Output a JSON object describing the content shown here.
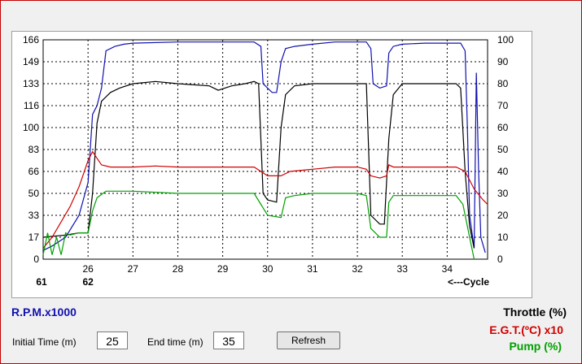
{
  "colors": {
    "rpm": "#1010b0",
    "throttle": "#000000",
    "egt": "#d00000",
    "pump": "#00a000",
    "frame": "#c40000"
  },
  "legend": {
    "rpm": "R.P.M.x1000",
    "throttle": "Throttle (%)",
    "egt": "E.G.T.(ºC) x10",
    "pump": "Pump (%)"
  },
  "controls": {
    "initial_label": "Initial Time (m)",
    "initial_value": "25",
    "end_label": "End time (m)",
    "end_value": "35",
    "refresh_label": "Refresh"
  },
  "chart_data": {
    "type": "line",
    "y_left_ticks": [
      "166",
      "149",
      "133",
      "116",
      "100",
      "83",
      "66",
      "50",
      "33",
      "17",
      "0"
    ],
    "y_right_ticks": [
      "100",
      "90",
      "80",
      "70",
      "60",
      "50",
      "40",
      "30",
      "20",
      "10",
      "0"
    ],
    "x_ticks": [
      "26",
      "27",
      "28",
      "29",
      "30",
      "31",
      "32",
      "33",
      "34"
    ],
    "cycle_labels": [
      "61",
      "62"
    ],
    "cycle_caption": "<---Cycle",
    "xlim": [
      25,
      34.9
    ],
    "ylim_right": [
      0,
      100
    ],
    "grid": true,
    "series": [
      {
        "name": "R.P.M.x1000",
        "color": "rpm",
        "points": [
          [
            25,
            4
          ],
          [
            25.2,
            6
          ],
          [
            25.5,
            10
          ],
          [
            25.8,
            20
          ],
          [
            26,
            35
          ],
          [
            26.1,
            66
          ],
          [
            26.2,
            70
          ],
          [
            26.3,
            78
          ],
          [
            26.4,
            95
          ],
          [
            26.6,
            97
          ],
          [
            26.8,
            98
          ],
          [
            27,
            98.5
          ],
          [
            28,
            99
          ],
          [
            29,
            99
          ],
          [
            29.7,
            99
          ],
          [
            29.85,
            97
          ],
          [
            29.9,
            80
          ],
          [
            30.1,
            76
          ],
          [
            30.2,
            76
          ],
          [
            30.3,
            90
          ],
          [
            30.4,
            96
          ],
          [
            30.6,
            97
          ],
          [
            31,
            98
          ],
          [
            31.5,
            99
          ],
          [
            32.2,
            99
          ],
          [
            32.3,
            96
          ],
          [
            32.35,
            80
          ],
          [
            32.5,
            78
          ],
          [
            32.65,
            79
          ],
          [
            32.7,
            94
          ],
          [
            32.8,
            97
          ],
          [
            33,
            98
          ],
          [
            33.5,
            98.5
          ],
          [
            34.3,
            98.5
          ],
          [
            34.4,
            95
          ],
          [
            34.45,
            60
          ],
          [
            34.5,
            20
          ],
          [
            34.6,
            5
          ],
          [
            34.65,
            85
          ],
          [
            34.7,
            40
          ],
          [
            34.75,
            10
          ],
          [
            34.85,
            3
          ]
        ]
      },
      {
        "name": "Throttle (%)",
        "color": "throttle",
        "points": [
          [
            25,
            10
          ],
          [
            25.5,
            11
          ],
          [
            25.8,
            12
          ],
          [
            26,
            12
          ],
          [
            26.1,
            30
          ],
          [
            26.2,
            62
          ],
          [
            26.3,
            72
          ],
          [
            26.5,
            76
          ],
          [
            26.7,
            78
          ],
          [
            27,
            80
          ],
          [
            27.5,
            81
          ],
          [
            28,
            80
          ],
          [
            28.7,
            79
          ],
          [
            28.9,
            77
          ],
          [
            29.2,
            79
          ],
          [
            29.5,
            80
          ],
          [
            29.7,
            81
          ],
          [
            29.8,
            80
          ],
          [
            29.9,
            30
          ],
          [
            30,
            27
          ],
          [
            30.2,
            26
          ],
          [
            30.3,
            60
          ],
          [
            30.4,
            75
          ],
          [
            30.6,
            79
          ],
          [
            31,
            80
          ],
          [
            31.5,
            80
          ],
          [
            32,
            80
          ],
          [
            32.2,
            80
          ],
          [
            32.3,
            20
          ],
          [
            32.5,
            16
          ],
          [
            32.6,
            16
          ],
          [
            32.7,
            55
          ],
          [
            32.8,
            75
          ],
          [
            33,
            80
          ],
          [
            33.5,
            80
          ],
          [
            34.2,
            80
          ],
          [
            34.3,
            78
          ],
          [
            34.4,
            40
          ],
          [
            34.5,
            15
          ],
          [
            34.6,
            5
          ]
        ]
      },
      {
        "name": "E.G.T.(ºC) x10",
        "color": "egt",
        "points": [
          [
            25,
            5
          ],
          [
            25.2,
            10
          ],
          [
            25.4,
            17
          ],
          [
            25.6,
            24
          ],
          [
            25.8,
            33
          ],
          [
            26,
            45
          ],
          [
            26.1,
            49
          ],
          [
            26.2,
            46
          ],
          [
            26.3,
            43
          ],
          [
            26.5,
            42
          ],
          [
            27,
            42
          ],
          [
            27.5,
            42.5
          ],
          [
            28,
            42
          ],
          [
            29,
            42
          ],
          [
            29.7,
            42
          ],
          [
            29.85,
            40
          ],
          [
            30,
            38
          ],
          [
            30.3,
            38
          ],
          [
            30.5,
            40
          ],
          [
            31,
            41
          ],
          [
            31.5,
            42
          ],
          [
            32,
            42
          ],
          [
            32.2,
            41
          ],
          [
            32.3,
            38
          ],
          [
            32.5,
            37
          ],
          [
            32.65,
            38
          ],
          [
            32.7,
            43
          ],
          [
            32.8,
            42
          ],
          [
            33,
            42
          ],
          [
            33.5,
            42
          ],
          [
            34.2,
            42
          ],
          [
            34.4,
            40
          ],
          [
            34.6,
            32
          ],
          [
            34.8,
            27
          ],
          [
            34.9,
            25
          ]
        ]
      },
      {
        "name": "Pump (%)",
        "color": "pump",
        "points": [
          [
            25,
            2
          ],
          [
            25.1,
            12
          ],
          [
            25.2,
            2
          ],
          [
            25.3,
            10
          ],
          [
            25.4,
            2
          ],
          [
            25.5,
            12
          ],
          [
            25.6,
            11
          ],
          [
            25.8,
            12
          ],
          [
            26,
            12
          ],
          [
            26.1,
            22
          ],
          [
            26.2,
            28
          ],
          [
            26.4,
            31
          ],
          [
            27,
            31
          ],
          [
            28,
            30
          ],
          [
            29,
            30
          ],
          [
            29.7,
            30
          ],
          [
            29.85,
            25
          ],
          [
            30,
            20
          ],
          [
            30.3,
            19
          ],
          [
            30.4,
            28
          ],
          [
            30.6,
            29
          ],
          [
            31,
            30
          ],
          [
            32,
            30
          ],
          [
            32.2,
            29
          ],
          [
            32.3,
            14
          ],
          [
            32.5,
            10
          ],
          [
            32.65,
            10
          ],
          [
            32.7,
            26
          ],
          [
            32.8,
            29
          ],
          [
            33,
            29
          ],
          [
            34.2,
            29
          ],
          [
            34.35,
            25
          ],
          [
            34.5,
            10
          ],
          [
            34.6,
            0
          ]
        ]
      }
    ]
  }
}
